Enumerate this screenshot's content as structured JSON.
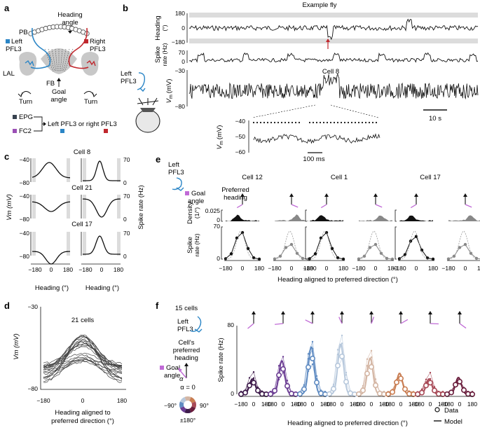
{
  "colors": {
    "blue": "#2a85c6",
    "red": "#c0272d",
    "dark": "#37424f",
    "purple": "#9b4fb5",
    "magenta": "#c06ad6",
    "grey": "#8e8e8e",
    "lightgrey": "#dcdcdc"
  },
  "panel_a": {
    "label": "a",
    "heading_angle": [
      "Heading",
      "angle"
    ],
    "pb": "PB",
    "left_pfl3": [
      "Left",
      "PFL3"
    ],
    "right_pfl3": [
      "Right",
      "PFL3"
    ],
    "lal": "LAL",
    "fb": "FB",
    "goal_angle": [
      "Goal",
      "angle"
    ],
    "turn_left": "Turn",
    "turn_right": "Turn",
    "epg": "EPG",
    "fc2": "FC2",
    "schematic_text": "Left PFL3 or right PFL3"
  },
  "panel_b": {
    "label": "b",
    "title": "Example fly",
    "heading_axis": [
      "Heading",
      "(°)"
    ],
    "heading_ticks": [
      "180",
      "0",
      "−180"
    ],
    "spike_axis": [
      "Spike",
      "rate (Hz)"
    ],
    "spike_ticks": [
      "70",
      "0"
    ],
    "vm_ticks": [
      "−30",
      "−80"
    ],
    "vm_axis": "V",
    "vm_sub": "m",
    "vm_unit": "(mV)",
    "cell": "Cell 8",
    "fly_label": [
      "Left",
      "PFL3"
    ],
    "scalebar": "10 s",
    "inset_ticks": [
      "−40",
      "−50",
      "−60"
    ],
    "inset_scalebar": "100 ms"
  },
  "panel_c": {
    "label": "c",
    "cells": [
      "Cell 8",
      "Cell 21",
      "Cell 17"
    ],
    "vm_ticks": [
      "−40",
      "−80"
    ],
    "rate_ticks": [
      "70",
      "0"
    ],
    "rate_ticks_top": [
      "70",
      "0"
    ],
    "vm_axis": "Vm (mV)",
    "rate_axis": "Spike rate (Hz)",
    "x_ticks": [
      "−180",
      "0",
      "180"
    ],
    "xlabel": "Heading (°)"
  },
  "panel_d": {
    "label": "d",
    "title": "21 cells",
    "ylabel": "Vm (mV)",
    "y_ticks": [
      "−30",
      "−80"
    ],
    "x_ticks": [
      "−180",
      "0",
      "180"
    ],
    "xlabel": [
      "Heading aligned to",
      "preferred direction (°)"
    ]
  },
  "panel_e": {
    "label": "e",
    "fly_label": [
      "Left",
      "PFL3"
    ],
    "goal_legend": [
      "Goal",
      "angle"
    ],
    "pref_legend": [
      "Preferred",
      "heading"
    ],
    "cells": [
      "Cell 12",
      "Cell 1",
      "Cell 17"
    ],
    "density_label": [
      "Density",
      "(1/°)"
    ],
    "density_ticks": [
      "0.025",
      "0"
    ],
    "spike_label": [
      "Spike",
      "rate (Hz)"
    ],
    "spike_ticks": [
      "70",
      "0"
    ],
    "x_ticks": [
      "−180",
      "0",
      "180"
    ],
    "xlabel": "Heading aligned to preferred direction (°)"
  },
  "panel_f": {
    "label": "f",
    "title": "15 cells",
    "fly_label": [
      "Left",
      "PFL3"
    ],
    "text": [
      "Cell's",
      "preferred",
      "heading"
    ],
    "goal_label": [
      "Goal",
      "angle"
    ],
    "alpha": "α = 0",
    "alpha_sym": "α",
    "wheel_left": "−90°",
    "wheel_right": "90°",
    "wheel_bottom": "±180°",
    "ylabel": "Spike rate (Hz)",
    "y_ticks": [
      "80",
      "0"
    ],
    "x_ticks": [
      "−180",
      "0",
      "180"
    ],
    "xlabel": "Heading aligned to preferred direction (°)",
    "legend_data": "Data",
    "legend_model": "Model",
    "series_colors": [
      "#3d1a4a",
      "#6b3d93",
      "#5f8bc2",
      "#b7c8dc",
      "#d4b6a4",
      "#c97d52",
      "#a84a57",
      "#6a1d3c"
    ]
  }
}
